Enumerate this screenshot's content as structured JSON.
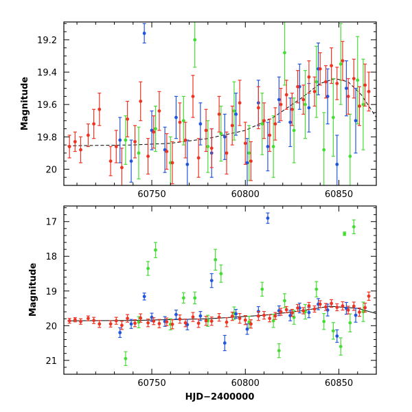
{
  "chart_data": [
    {
      "type": "scatter",
      "panel": "top",
      "title": "",
      "xlabel": "",
      "ylabel": "Magnitude",
      "xlim": [
        60703,
        60870
      ],
      "ylim": [
        20.1,
        19.09
      ],
      "y_inverted": true,
      "x_ticks_major": [
        60750,
        60800,
        60850
      ],
      "x_tick_labels": [
        "60750",
        "60800",
        "60850"
      ],
      "y_ticks_major": [
        19.2,
        19.4,
        19.6,
        19.8,
        20.0
      ],
      "y_tick_labels": [
        "19.2",
        "19.4",
        "19.6",
        "19.8",
        "20"
      ],
      "grid": false,
      "legend": "none",
      "model_curve": {
        "style": "dashed",
        "color": "#000000",
        "x": [
          60705,
          60720,
          60740,
          60760,
          60780,
          60800,
          60815,
          60830,
          60840,
          60848,
          60855,
          60862,
          60870
        ],
        "y": [
          19.855,
          19.853,
          19.85,
          19.84,
          19.81,
          19.76,
          19.68,
          19.56,
          19.47,
          19.44,
          19.46,
          19.54,
          19.68
        ]
      },
      "series": [
        {
          "name": "",
          "color": "#ee3322",
          "x": [
            60706,
            60709,
            60712,
            60716,
            60719,
            60722,
            60728,
            60731,
            60734,
            60737,
            60741,
            60744,
            60748,
            60751,
            60754,
            60758,
            60761,
            60765,
            60768,
            60772,
            60775,
            60779,
            60782,
            60786,
            60790,
            60793,
            60797,
            60800,
            60803,
            60807,
            60810,
            60813,
            60816,
            60819,
            60822,
            60825,
            60828,
            60831,
            60834,
            60837,
            60840,
            60843,
            60846,
            60849,
            60852,
            60855,
            60858,
            60861,
            60864,
            60866
          ],
          "y": [
            19.86,
            19.83,
            19.88,
            19.79,
            19.72,
            19.63,
            19.95,
            19.86,
            19.99,
            19.69,
            19.83,
            19.58,
            19.92,
            19.77,
            19.64,
            19.89,
            19.96,
            19.71,
            19.82,
            19.55,
            19.93,
            19.76,
            19.87,
            19.66,
            19.9,
            19.73,
            19.59,
            19.84,
            19.95,
            19.62,
            19.7,
            19.79,
            19.72,
            19.6,
            19.54,
            19.63,
            19.49,
            19.57,
            19.43,
            19.52,
            19.38,
            19.46,
            19.36,
            19.47,
            19.33,
            19.55,
            19.44,
            19.61,
            19.48,
            19.52
          ],
          "err": [
            0.07,
            0.06,
            0.08,
            0.07,
            0.09,
            0.1,
            0.09,
            0.1,
            0.12,
            0.11,
            0.1,
            0.12,
            0.11,
            0.1,
            0.12,
            0.11,
            0.13,
            0.12,
            0.11,
            0.13,
            0.12,
            0.13,
            0.12,
            0.11,
            0.13,
            0.12,
            0.14,
            0.13,
            0.12,
            0.13,
            0.11,
            0.1,
            0.1,
            0.1,
            0.09,
            0.1,
            0.1,
            0.09,
            0.1,
            0.09,
            0.1,
            0.1,
            0.11,
            0.1,
            0.12,
            0.11,
            0.12,
            0.12,
            0.13,
            0.12
          ]
        },
        {
          "name": "",
          "color": "#2255dd",
          "x": [
            60733,
            60739,
            60746,
            60750,
            60757,
            60763,
            60769,
            60776,
            60782,
            60789,
            60795,
            60801,
            60807,
            60812,
            60818,
            60824,
            60829,
            60834,
            60839,
            60844,
            60849,
            60854,
            60859
          ],
          "y": [
            19.82,
            19.95,
            19.16,
            19.76,
            19.88,
            19.68,
            19.97,
            19.72,
            19.9,
            19.8,
            19.66,
            19.96,
            19.59,
            19.86,
            19.57,
            19.71,
            19.49,
            19.62,
            19.38,
            19.55,
            19.97,
            19.5,
            19.7
          ],
          "err": [
            0.14,
            0.13,
            0.06,
            0.12,
            0.14,
            0.13,
            0.15,
            0.13,
            0.15,
            0.14,
            0.13,
            0.15,
            0.14,
            0.15,
            0.14,
            0.15,
            0.14,
            0.15,
            0.16,
            0.17,
            0.18,
            0.17,
            0.2
          ]
        },
        {
          "name": "",
          "color": "#44dd33",
          "x": [
            60736,
            60743,
            60752,
            60760,
            60767,
            60773,
            60780,
            60787,
            60794,
            60802,
            60809,
            60815,
            60821,
            60826,
            60832,
            60838,
            60842,
            60847,
            60851,
            60856,
            60860,
            60863
          ],
          "y": [
            19.82,
            19.9,
            19.75,
            19.96,
            19.7,
            19.2,
            19.86,
            19.78,
            19.64,
            19.9,
            19.72,
            19.86,
            19.28,
            19.76,
            19.6,
            19.46,
            19.88,
            19.68,
            19.35,
            19.92,
            19.45,
            19.6
          ],
          "err": [
            0.15,
            0.16,
            0.14,
            0.16,
            0.15,
            0.17,
            0.16,
            0.17,
            0.18,
            0.17,
            0.19,
            0.19,
            0.2,
            0.2,
            0.21,
            0.22,
            0.23,
            0.24,
            0.25,
            0.26,
            0.27,
            0.28
          ]
        }
      ]
    },
    {
      "type": "scatter",
      "panel": "bottom",
      "title": "",
      "xlabel": "HJD−2400000",
      "ylabel": "Magnitude",
      "xlim": [
        60703,
        60870
      ],
      "ylim": [
        21.4,
        16.55
      ],
      "y_inverted": true,
      "x_ticks_major": [
        60750,
        60800,
        60850
      ],
      "x_tick_labels": [
        "60750",
        "60800",
        "60850"
      ],
      "y_ticks_major": [
        17,
        18,
        19,
        20,
        21
      ],
      "y_tick_labels": [
        "17",
        "18",
        "19",
        "20",
        "21"
      ],
      "grid": false,
      "legend": "none",
      "model_curve": {
        "style": "solid",
        "color": "#000000",
        "x": [
          60705,
          60740,
          60780,
          60810,
          60830,
          60845,
          60860,
          60870
        ],
        "y": [
          19.86,
          19.85,
          19.8,
          19.7,
          19.57,
          19.44,
          19.5,
          19.65
        ]
      },
      "series": [
        {
          "name": "",
          "color": "#ee3322",
          "x": [
            60706,
            60709,
            60712,
            60716,
            60719,
            60722,
            60728,
            60731,
            60734,
            60737,
            60741,
            60744,
            60748,
            60751,
            60754,
            60758,
            60761,
            60765,
            60768,
            60772,
            60775,
            60779,
            60782,
            60786,
            60790,
            60793,
            60797,
            60800,
            60803,
            60807,
            60810,
            60813,
            60816,
            60819,
            60822,
            60825,
            60828,
            60831,
            60834,
            60837,
            60840,
            60843,
            60846,
            60849,
            60852,
            60855,
            60858,
            60861,
            60864,
            60866
          ],
          "y": [
            19.86,
            19.83,
            19.88,
            19.79,
            19.85,
            19.95,
            19.95,
            19.86,
            19.99,
            19.79,
            19.93,
            19.78,
            19.92,
            19.87,
            19.94,
            19.89,
            19.96,
            19.81,
            19.92,
            19.75,
            19.93,
            19.86,
            19.87,
            19.76,
            19.9,
            19.73,
            19.79,
            19.84,
            19.95,
            19.72,
            19.7,
            19.79,
            19.72,
            19.6,
            19.54,
            19.63,
            19.49,
            19.57,
            19.43,
            19.52,
            19.38,
            19.46,
            19.36,
            19.47,
            19.43,
            19.55,
            19.44,
            19.61,
            19.48,
            19.15
          ],
          "err": [
            0.07,
            0.06,
            0.08,
            0.07,
            0.09,
            0.1,
            0.09,
            0.1,
            0.12,
            0.11,
            0.1,
            0.12,
            0.11,
            0.1,
            0.12,
            0.11,
            0.13,
            0.12,
            0.11,
            0.13,
            0.12,
            0.13,
            0.12,
            0.11,
            0.13,
            0.12,
            0.14,
            0.13,
            0.12,
            0.13,
            0.11,
            0.1,
            0.1,
            0.1,
            0.09,
            0.1,
            0.1,
            0.09,
            0.1,
            0.09,
            0.1,
            0.1,
            0.11,
            0.1,
            0.12,
            0.11,
            0.12,
            0.12,
            0.13,
            0.12
          ]
        },
        {
          "name": "",
          "color": "#2255dd",
          "x": [
            60733,
            60739,
            60746,
            60750,
            60757,
            60763,
            60769,
            60776,
            60782,
            60789,
            60795,
            60801,
            60807,
            60812,
            60818,
            60824,
            60829,
            60834,
            60839,
            60844,
            60849,
            60854,
            60859
          ],
          "y": [
            20.2,
            19.95,
            19.16,
            19.76,
            19.88,
            19.68,
            19.97,
            19.72,
            18.7,
            20.5,
            19.66,
            20.1,
            19.59,
            16.9,
            19.57,
            19.71,
            19.49,
            19.62,
            19.38,
            19.55,
            20.3,
            19.5,
            19.7
          ],
          "err": [
            0.14,
            0.13,
            0.1,
            0.12,
            0.14,
            0.13,
            0.15,
            0.13,
            0.2,
            0.22,
            0.13,
            0.15,
            0.14,
            0.15,
            0.14,
            0.15,
            0.14,
            0.15,
            0.16,
            0.17,
            0.18,
            0.17,
            0.2
          ]
        },
        {
          "name": "",
          "color": "#44dd33",
          "x": [
            60736,
            60743,
            60748,
            60752,
            60760,
            60767,
            60773,
            60780,
            60784,
            60787,
            60794,
            60802,
            60809,
            60815,
            60818,
            60821,
            60826,
            60832,
            60838,
            60842,
            60847,
            60851,
            60853,
            60856,
            60858,
            60863
          ],
          "y": [
            20.95,
            19.9,
            18.35,
            17.82,
            19.96,
            19.2,
            19.2,
            19.86,
            18.1,
            18.5,
            19.64,
            19.9,
            18.95,
            19.86,
            20.72,
            19.28,
            19.76,
            19.6,
            18.95,
            19.88,
            20.15,
            20.6,
            17.35,
            19.92,
            17.15,
            19.6
          ],
          "err": [
            0.2,
            0.16,
            0.2,
            0.22,
            0.16,
            0.15,
            0.17,
            0.16,
            0.3,
            0.25,
            0.18,
            0.17,
            0.2,
            0.19,
            0.2,
            0.2,
            0.2,
            0.21,
            0.22,
            0.23,
            0.24,
            0.25,
            0.05,
            0.26,
            0.2,
            0.28
          ]
        }
      ]
    }
  ]
}
